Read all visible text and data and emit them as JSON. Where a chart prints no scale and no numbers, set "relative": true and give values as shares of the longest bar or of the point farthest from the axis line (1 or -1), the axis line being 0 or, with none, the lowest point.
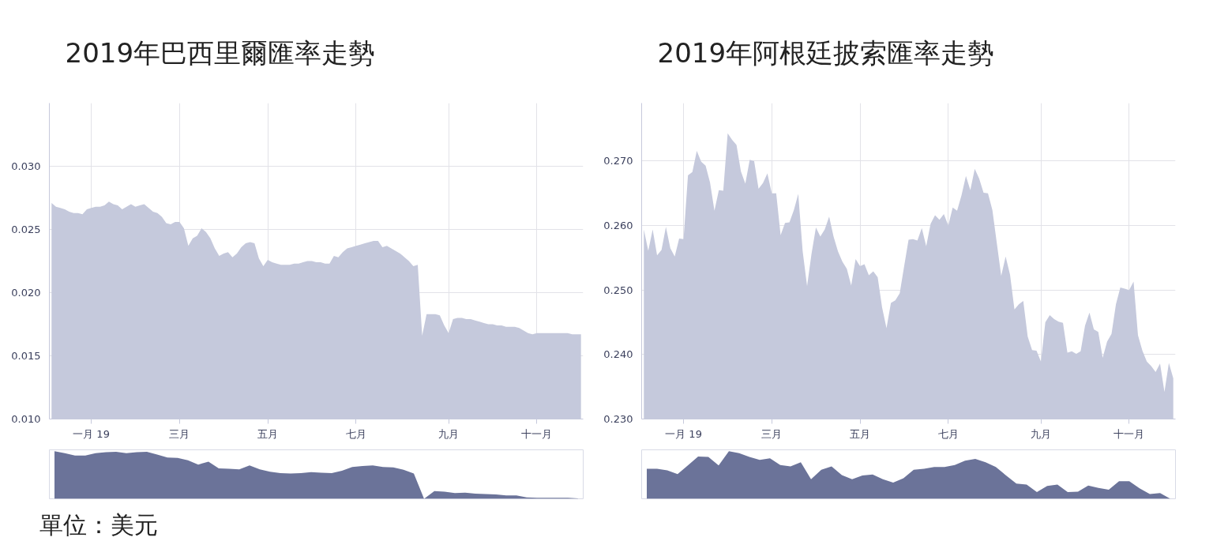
{
  "chart_data": [
    {
      "type": "area",
      "title": "2019年巴西里爾匯率走勢",
      "color": "#c5c9dc",
      "grid": true,
      "annotations": [
        "單位：美元"
      ],
      "ylim": [
        0.01,
        0.035
      ],
      "yticks": [
        {
          "value": 0.01,
          "label": "0.010"
        },
        0.015,
        {
          "value": 0.02,
          "label": "0.020"
        },
        0.025,
        {
          "value": 0.03,
          "label": "0.030"
        }
      ],
      "categories": [
        null,
        null,
        null,
        null,
        null,
        null,
        null,
        null,
        null,
        "一月 19",
        null,
        null,
        null,
        null,
        null,
        null,
        null,
        null,
        null,
        null,
        null,
        null,
        null,
        null,
        null,
        null,
        null,
        null,
        null,
        "三月",
        null,
        null,
        null,
        null,
        null,
        null,
        null,
        null,
        null,
        null,
        null,
        null,
        null,
        null,
        null,
        null,
        null,
        null,
        null,
        "五月",
        null,
        null,
        null,
        null,
        null,
        null,
        null,
        null,
        null,
        null,
        null,
        null,
        null,
        null,
        null,
        null,
        null,
        null,
        null,
        "七月",
        null,
        null,
        null,
        null,
        null,
        null,
        null,
        null,
        null,
        null,
        null,
        null,
        null,
        null,
        null,
        null,
        null,
        null,
        null,
        null,
        "九月",
        null,
        null,
        null,
        null,
        null,
        null,
        null,
        null,
        null,
        null,
        null,
        null,
        null,
        null,
        null,
        null,
        null,
        null,
        null,
        "十一月",
        null,
        null,
        null,
        null,
        null,
        null,
        null,
        null,
        null,
        null
      ],
      "values": [
        0.0271,
        0.0268,
        0.0267,
        0.0266,
        0.0264,
        0.0263,
        0.0263,
        0.0262,
        0.0266,
        0.0267,
        0.0268,
        0.0268,
        0.0269,
        0.0272,
        0.027,
        0.0269,
        0.0266,
        0.0268,
        0.027,
        0.0268,
        0.0269,
        0.027,
        0.0267,
        0.0264,
        0.0263,
        0.026,
        0.0255,
        0.0254,
        0.0256,
        0.0256,
        0.0251,
        0.0237,
        0.0243,
        0.0245,
        0.0251,
        0.0248,
        0.0243,
        0.0235,
        0.0229,
        0.0231,
        0.0232,
        0.0228,
        0.0231,
        0.0236,
        0.0239,
        0.024,
        0.0239,
        0.0227,
        0.0221,
        0.0226,
        0.0224,
        0.0223,
        0.0222,
        0.0222,
        0.0222,
        0.0223,
        0.0223,
        0.0224,
        0.0225,
        0.0225,
        0.0224,
        0.0224,
        0.0223,
        0.0223,
        0.0229,
        0.0228,
        0.0232,
        0.0235,
        0.0236,
        0.0237,
        0.0238,
        0.0239,
        0.024,
        0.0241,
        0.0241,
        0.0236,
        0.0237,
        0.0235,
        0.0233,
        0.0231,
        0.0228,
        0.0225,
        0.0221,
        0.0222,
        0.0166,
        0.0183,
        0.0183,
        0.0183,
        0.0182,
        0.0174,
        0.0168,
        0.0179,
        0.018,
        0.018,
        0.0179,
        0.0179,
        0.0178,
        0.0177,
        0.0176,
        0.0175,
        0.0175,
        0.0174,
        0.0174,
        0.0173,
        0.0173,
        0.0173,
        0.0172,
        0.017,
        0.0168,
        0.0167,
        0.0168,
        0.0168,
        0.0168,
        0.0168,
        0.0168,
        0.0168,
        0.0168,
        0.0168,
        0.0167,
        0.0167,
        0.0167
      ]
    },
    {
      "type": "area",
      "title": "2019年阿根廷披索匯率走勢",
      "color": "#c5c9dc",
      "grid": true,
      "ylim": [
        0.23,
        0.279
      ],
      "yticks": [
        {
          "value": 0.23,
          "label": "0.230"
        },
        {
          "value": 0.24,
          "label": "0.240"
        },
        {
          "value": 0.25,
          "label": "0.250"
        },
        {
          "value": 0.26,
          "label": "0.260"
        },
        {
          "value": 0.27,
          "label": "0.270"
        }
      ],
      "categories": [
        null,
        null,
        null,
        null,
        null,
        null,
        null,
        null,
        null,
        "一月 19",
        null,
        null,
        null,
        null,
        null,
        null,
        null,
        null,
        null,
        null,
        null,
        null,
        null,
        null,
        null,
        null,
        null,
        null,
        null,
        "三月",
        null,
        null,
        null,
        null,
        null,
        null,
        null,
        null,
        null,
        null,
        null,
        null,
        null,
        null,
        null,
        null,
        null,
        null,
        null,
        "五月",
        null,
        null,
        null,
        null,
        null,
        null,
        null,
        null,
        null,
        null,
        null,
        null,
        null,
        null,
        null,
        null,
        null,
        null,
        null,
        "七月",
        null,
        null,
        null,
        null,
        null,
        null,
        null,
        null,
        null,
        null,
        null,
        null,
        null,
        null,
        null,
        null,
        null,
        null,
        null,
        null,
        "九月",
        null,
        null,
        null,
        null,
        null,
        null,
        null,
        null,
        null,
        null,
        null,
        null,
        null,
        null,
        null,
        null,
        null,
        null,
        null,
        "十一月",
        null,
        null,
        null,
        null,
        null,
        null,
        null,
        null,
        null,
        null
      ],
      "values": [
        0.2594,
        0.2561,
        0.2594,
        0.2554,
        0.2562,
        0.2598,
        0.2565,
        0.2552,
        0.258,
        0.2579,
        0.2678,
        0.2683,
        0.2716,
        0.2699,
        0.2693,
        0.2667,
        0.2623,
        0.2655,
        0.2654,
        0.2743,
        0.2733,
        0.2725,
        0.2684,
        0.2665,
        0.2702,
        0.27,
        0.2657,
        0.2666,
        0.2681,
        0.265,
        0.265,
        0.2585,
        0.2604,
        0.2605,
        0.2624,
        0.2649,
        0.256,
        0.2506,
        0.2556,
        0.2597,
        0.2583,
        0.2594,
        0.2614,
        0.2583,
        0.256,
        0.2544,
        0.2533,
        0.2507,
        0.2548,
        0.2537,
        0.254,
        0.2523,
        0.2529,
        0.252,
        0.2473,
        0.2441,
        0.248,
        0.2484,
        0.2495,
        0.2537,
        0.2578,
        0.2579,
        0.2577,
        0.2596,
        0.2568,
        0.2603,
        0.2616,
        0.2609,
        0.2618,
        0.26,
        0.2628,
        0.2623,
        0.2647,
        0.2677,
        0.2655,
        0.2688,
        0.2673,
        0.2651,
        0.265,
        0.2624,
        0.2573,
        0.2522,
        0.2552,
        0.2524,
        0.247,
        0.2478,
        0.2483,
        0.2428,
        0.2407,
        0.2406,
        0.2389,
        0.245,
        0.2461,
        0.2455,
        0.2451,
        0.2449,
        0.2403,
        0.2405,
        0.2401,
        0.2405,
        0.2445,
        0.2465,
        0.2439,
        0.2435,
        0.2395,
        0.242,
        0.2432,
        0.2478,
        0.2504,
        0.2502,
        0.25,
        0.2513,
        0.243,
        0.2406,
        0.2389,
        0.2382,
        0.2373,
        0.2386,
        0.2342,
        0.2387,
        0.2363
      ]
    },
    {
      "type": "area",
      "relative": true,
      "color": "#6b7399",
      "categories": [
        null,
        null,
        null,
        null,
        null,
        null,
        null,
        null,
        null,
        null,
        null,
        null,
        null,
        null,
        null,
        null,
        null,
        null,
        null,
        null,
        null,
        null,
        null,
        null,
        null,
        null,
        null,
        null,
        null,
        null,
        null,
        null,
        null,
        null,
        null,
        null,
        null,
        null,
        null,
        null,
        null,
        null,
        null,
        null,
        null,
        null,
        null,
        null,
        null,
        null,
        null,
        null
      ],
      "values": [
        1.0,
        0.96,
        0.91,
        0.91,
        0.96,
        0.98,
        0.99,
        0.96,
        0.98,
        0.99,
        0.93,
        0.87,
        0.86,
        0.81,
        0.72,
        0.78,
        0.64,
        0.63,
        0.62,
        0.7,
        0.62,
        0.57,
        0.54,
        0.53,
        0.54,
        0.56,
        0.55,
        0.54,
        0.59,
        0.67,
        0.69,
        0.7,
        0.67,
        0.66,
        0.61,
        0.53,
        0,
        0.16,
        0.15,
        0.12,
        0.13,
        0.11,
        0.1,
        0.09,
        0.07,
        0.07,
        0.03,
        0.02,
        0.02,
        0.02,
        0.02,
        0.01
      ]
    },
    {
      "type": "area",
      "relative": true,
      "color": "#6b7399",
      "categories": [
        null,
        null,
        null,
        null,
        null,
        null,
        null,
        null,
        null,
        null,
        null,
        null,
        null,
        null,
        null,
        null,
        null,
        null,
        null,
        null,
        null,
        null,
        null,
        null,
        null,
        null,
        null,
        null,
        null,
        null,
        null,
        null,
        null,
        null,
        null,
        null,
        null,
        null,
        null,
        null,
        null,
        null,
        null,
        null,
        null,
        null,
        null,
        null,
        null,
        null,
        null,
        null
      ],
      "values": [
        0.63,
        0.63,
        0.6,
        0.52,
        0.7,
        0.89,
        0.88,
        0.7,
        1.0,
        0.96,
        0.88,
        0.82,
        0.85,
        0.71,
        0.68,
        0.77,
        0.41,
        0.61,
        0.68,
        0.5,
        0.41,
        0.49,
        0.51,
        0.41,
        0.34,
        0.43,
        0.61,
        0.63,
        0.67,
        0.67,
        0.71,
        0.8,
        0.84,
        0.77,
        0.67,
        0.49,
        0.32,
        0.3,
        0.14,
        0.27,
        0.3,
        0.14,
        0.15,
        0.28,
        0.23,
        0.19,
        0.37,
        0.37,
        0.22,
        0.1,
        0.12,
        0
      ]
    }
  ]
}
